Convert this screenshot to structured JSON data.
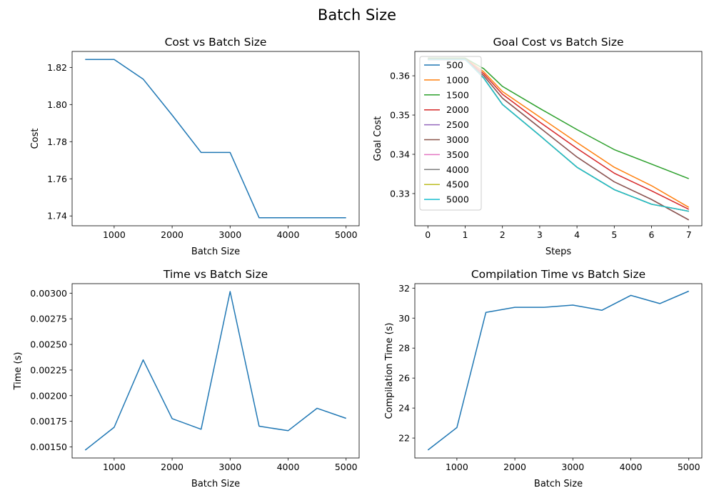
{
  "figure": {
    "title": "Batch Size"
  },
  "colors": [
    "#1f77b4",
    "#ff7f0e",
    "#2ca02c",
    "#d62728",
    "#9467bd",
    "#8c564b",
    "#e377c2",
    "#7f7f7f",
    "#bcbd22",
    "#17becf"
  ],
  "chart_data": [
    {
      "type": "line",
      "title": "Cost vs Batch Size",
      "xlabel": "Batch Size",
      "ylabel": "Cost",
      "xlim": [
        275,
        5225
      ],
      "ylim": [
        1.7347,
        1.8286
      ],
      "xticks": [
        1000,
        2000,
        3000,
        4000,
        5000
      ],
      "xtick_labels": [
        "1000",
        "2000",
        "3000",
        "4000",
        "5000"
      ],
      "yticks": [
        1.74,
        1.76,
        1.78,
        1.8,
        1.82
      ],
      "ytick_labels": [
        "1.74",
        "1.76",
        "1.78",
        "1.80",
        "1.82"
      ],
      "grid": false,
      "series": [
        {
          "x": [
            500,
            1000,
            1500,
            2000,
            2500,
            3000,
            3500,
            4000,
            4500,
            5000
          ],
          "y": [
            1.8243,
            1.8243,
            1.8137,
            1.7943,
            1.7742,
            1.7742,
            1.739,
            1.739,
            1.739,
            1.739
          ]
        }
      ]
    },
    {
      "type": "line",
      "title": "Goal Cost vs Batch Size",
      "xlabel": "Steps",
      "ylabel": "Goal Cost",
      "xlim": [
        -0.35,
        7.35
      ],
      "ylim": [
        0.3218,
        0.3662
      ],
      "xticks": [
        0,
        1,
        2,
        3,
        4,
        5,
        6,
        7
      ],
      "xtick_labels": [
        "0",
        "1",
        "2",
        "3",
        "4",
        "5",
        "6",
        "7"
      ],
      "yticks": [
        0.33,
        0.34,
        0.35,
        0.36
      ],
      "ytick_labels": [
        "0.33",
        "0.34",
        "0.35",
        "0.36"
      ],
      "grid": false,
      "legend": {
        "position": "upper-left"
      },
      "series": [
        {
          "name": "500",
          "x": [
            0,
            1,
            1.5,
            2,
            3,
            4,
            5,
            6,
            7
          ],
          "y": [
            0.3642,
            0.3642,
            0.3594,
            0.3527,
            0.3448,
            0.3367,
            0.331,
            0.3273,
            0.3255
          ]
        },
        {
          "name": "1000",
          "x": [
            0,
            1,
            1.5,
            2,
            3,
            4,
            5,
            6,
            7
          ],
          "y": [
            0.3645,
            0.3645,
            0.361,
            0.356,
            0.3495,
            0.343,
            0.3367,
            0.332,
            0.3265
          ]
        },
        {
          "name": "1500",
          "x": [
            0,
            1,
            1.5,
            2,
            3,
            4,
            5,
            6,
            7
          ],
          "y": [
            0.3645,
            0.3645,
            0.3618,
            0.3573,
            0.3517,
            0.3463,
            0.3412,
            0.3375,
            0.3338
          ]
        },
        {
          "name": "2000",
          "x": [
            0,
            1,
            1.5,
            2,
            3,
            4,
            5,
            6,
            7
          ],
          "y": [
            0.3643,
            0.3643,
            0.3605,
            0.3553,
            0.3482,
            0.3415,
            0.3352,
            0.3307,
            0.326
          ]
        },
        {
          "name": "2500",
          "x": [
            0,
            1,
            1.5,
            2,
            3,
            4,
            5,
            6,
            7
          ],
          "y": [
            0.3641,
            0.3641,
            0.36,
            0.3543,
            0.3468,
            0.3393,
            0.333,
            0.3285,
            0.3233
          ]
        },
        {
          "name": "3000",
          "x": [
            0,
            1,
            1.5,
            2,
            3,
            4,
            5,
            6,
            7
          ],
          "y": [
            0.3641,
            0.3641,
            0.36,
            0.3543,
            0.3468,
            0.3393,
            0.333,
            0.3285,
            0.3233
          ]
        },
        {
          "name": "3500",
          "x": [
            0,
            1,
            1.5,
            2,
            3,
            4,
            5,
            6,
            7
          ],
          "y": [
            0.3642,
            0.3642,
            0.3594,
            0.3527,
            0.3448,
            0.3367,
            0.331,
            0.3273,
            0.3255
          ]
        },
        {
          "name": "4000",
          "x": [
            0,
            1,
            1.5,
            2,
            3,
            4,
            5,
            6,
            7
          ],
          "y": [
            0.3642,
            0.3642,
            0.3594,
            0.3527,
            0.3448,
            0.3367,
            0.331,
            0.3273,
            0.3255
          ]
        },
        {
          "name": "4500",
          "x": [
            0,
            1,
            1.5,
            2,
            3,
            4,
            5,
            6,
            7
          ],
          "y": [
            0.3642,
            0.3642,
            0.3594,
            0.3527,
            0.3448,
            0.3367,
            0.331,
            0.3273,
            0.3255
          ]
        },
        {
          "name": "5000",
          "x": [
            0,
            1,
            1.5,
            2,
            3,
            4,
            5,
            6,
            7
          ],
          "y": [
            0.3642,
            0.3642,
            0.3594,
            0.3527,
            0.3448,
            0.3367,
            0.331,
            0.3273,
            0.3255
          ]
        }
      ]
    },
    {
      "type": "line",
      "title": "Time vs Batch Size",
      "xlabel": "Batch Size",
      "ylabel": "Time (s)",
      "xlim": [
        275,
        5225
      ],
      "ylim": [
        0.001392,
        0.003093
      ],
      "xticks": [
        1000,
        2000,
        3000,
        4000,
        5000
      ],
      "xtick_labels": [
        "1000",
        "2000",
        "3000",
        "4000",
        "5000"
      ],
      "yticks": [
        0.0015,
        0.00175,
        0.002,
        0.00225,
        0.0025,
        0.00275,
        0.003
      ],
      "ytick_labels": [
        "0.00150",
        "0.00175",
        "0.00200",
        "0.00225",
        "0.00250",
        "0.00275",
        "0.00300"
      ],
      "grid": false,
      "series": [
        {
          "x": [
            500,
            1000,
            1500,
            2000,
            2500,
            3000,
            3500,
            4000,
            4500,
            5000
          ],
          "y": [
            0.001469,
            0.001692,
            0.002349,
            0.001776,
            0.001672,
            0.003016,
            0.001702,
            0.001658,
            0.001877,
            0.001779
          ]
        }
      ]
    },
    {
      "type": "line",
      "title": "Compilation Time vs Batch Size",
      "xlabel": "Batch Size",
      "ylabel": "Compilation Time (s)",
      "xlim": [
        275,
        5225
      ],
      "ylim": [
        20.67,
        32.3
      ],
      "xticks": [
        1000,
        2000,
        3000,
        4000,
        5000
      ],
      "xtick_labels": [
        "1000",
        "2000",
        "3000",
        "4000",
        "5000"
      ],
      "yticks": [
        22,
        24,
        26,
        28,
        30,
        32
      ],
      "ytick_labels": [
        "22",
        "24",
        "26",
        "28",
        "30",
        "32"
      ],
      "grid": false,
      "series": [
        {
          "x": [
            500,
            1000,
            1500,
            2000,
            2500,
            3000,
            3500,
            4000,
            4500,
            5000
          ],
          "y": [
            21.2,
            22.7,
            30.38,
            30.72,
            30.72,
            30.87,
            30.52,
            31.52,
            30.97,
            31.8
          ]
        }
      ]
    }
  ]
}
